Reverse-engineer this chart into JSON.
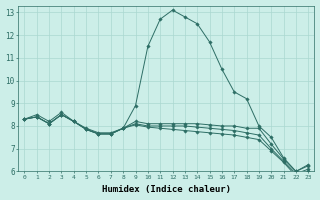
{
  "xlabel": "Humidex (Indice chaleur)",
  "ylabel": "",
  "bg_color": "#cceee8",
  "grid_color": "#aad8d0",
  "line_color": "#2d6e65",
  "xlim": [
    -0.5,
    23.5
  ],
  "ylim": [
    6,
    13.3
  ],
  "yticks": [
    6,
    7,
    8,
    9,
    10,
    11,
    12,
    13
  ],
  "xticks": [
    0,
    1,
    2,
    3,
    4,
    5,
    6,
    7,
    8,
    9,
    10,
    11,
    12,
    13,
    14,
    15,
    16,
    17,
    18,
    19,
    20,
    21,
    22,
    23
  ],
  "series": [
    [
      8.3,
      8.5,
      8.2,
      8.6,
      8.2,
      7.9,
      7.7,
      7.7,
      7.9,
      8.9,
      11.5,
      12.7,
      13.1,
      12.8,
      12.5,
      11.7,
      10.5,
      9.5,
      9.2,
      8.0,
      7.5,
      6.6,
      6.0,
      6.3
    ],
    [
      8.3,
      8.4,
      8.1,
      8.5,
      8.2,
      7.85,
      7.65,
      7.65,
      7.9,
      8.2,
      8.1,
      8.1,
      8.1,
      8.1,
      8.1,
      8.05,
      8.0,
      8.0,
      7.9,
      7.9,
      7.2,
      6.55,
      6.0,
      6.25
    ],
    [
      8.3,
      8.4,
      8.1,
      8.5,
      8.2,
      7.85,
      7.65,
      7.65,
      7.9,
      8.1,
      8.0,
      8.0,
      8.0,
      8.0,
      7.95,
      7.9,
      7.85,
      7.8,
      7.7,
      7.6,
      7.0,
      6.45,
      5.9,
      6.1
    ],
    [
      8.3,
      8.4,
      8.1,
      8.5,
      8.2,
      7.85,
      7.65,
      7.65,
      7.9,
      8.05,
      7.95,
      7.9,
      7.85,
      7.8,
      7.75,
      7.7,
      7.65,
      7.6,
      7.5,
      7.4,
      6.9,
      6.4,
      5.8,
      6.0
    ]
  ]
}
